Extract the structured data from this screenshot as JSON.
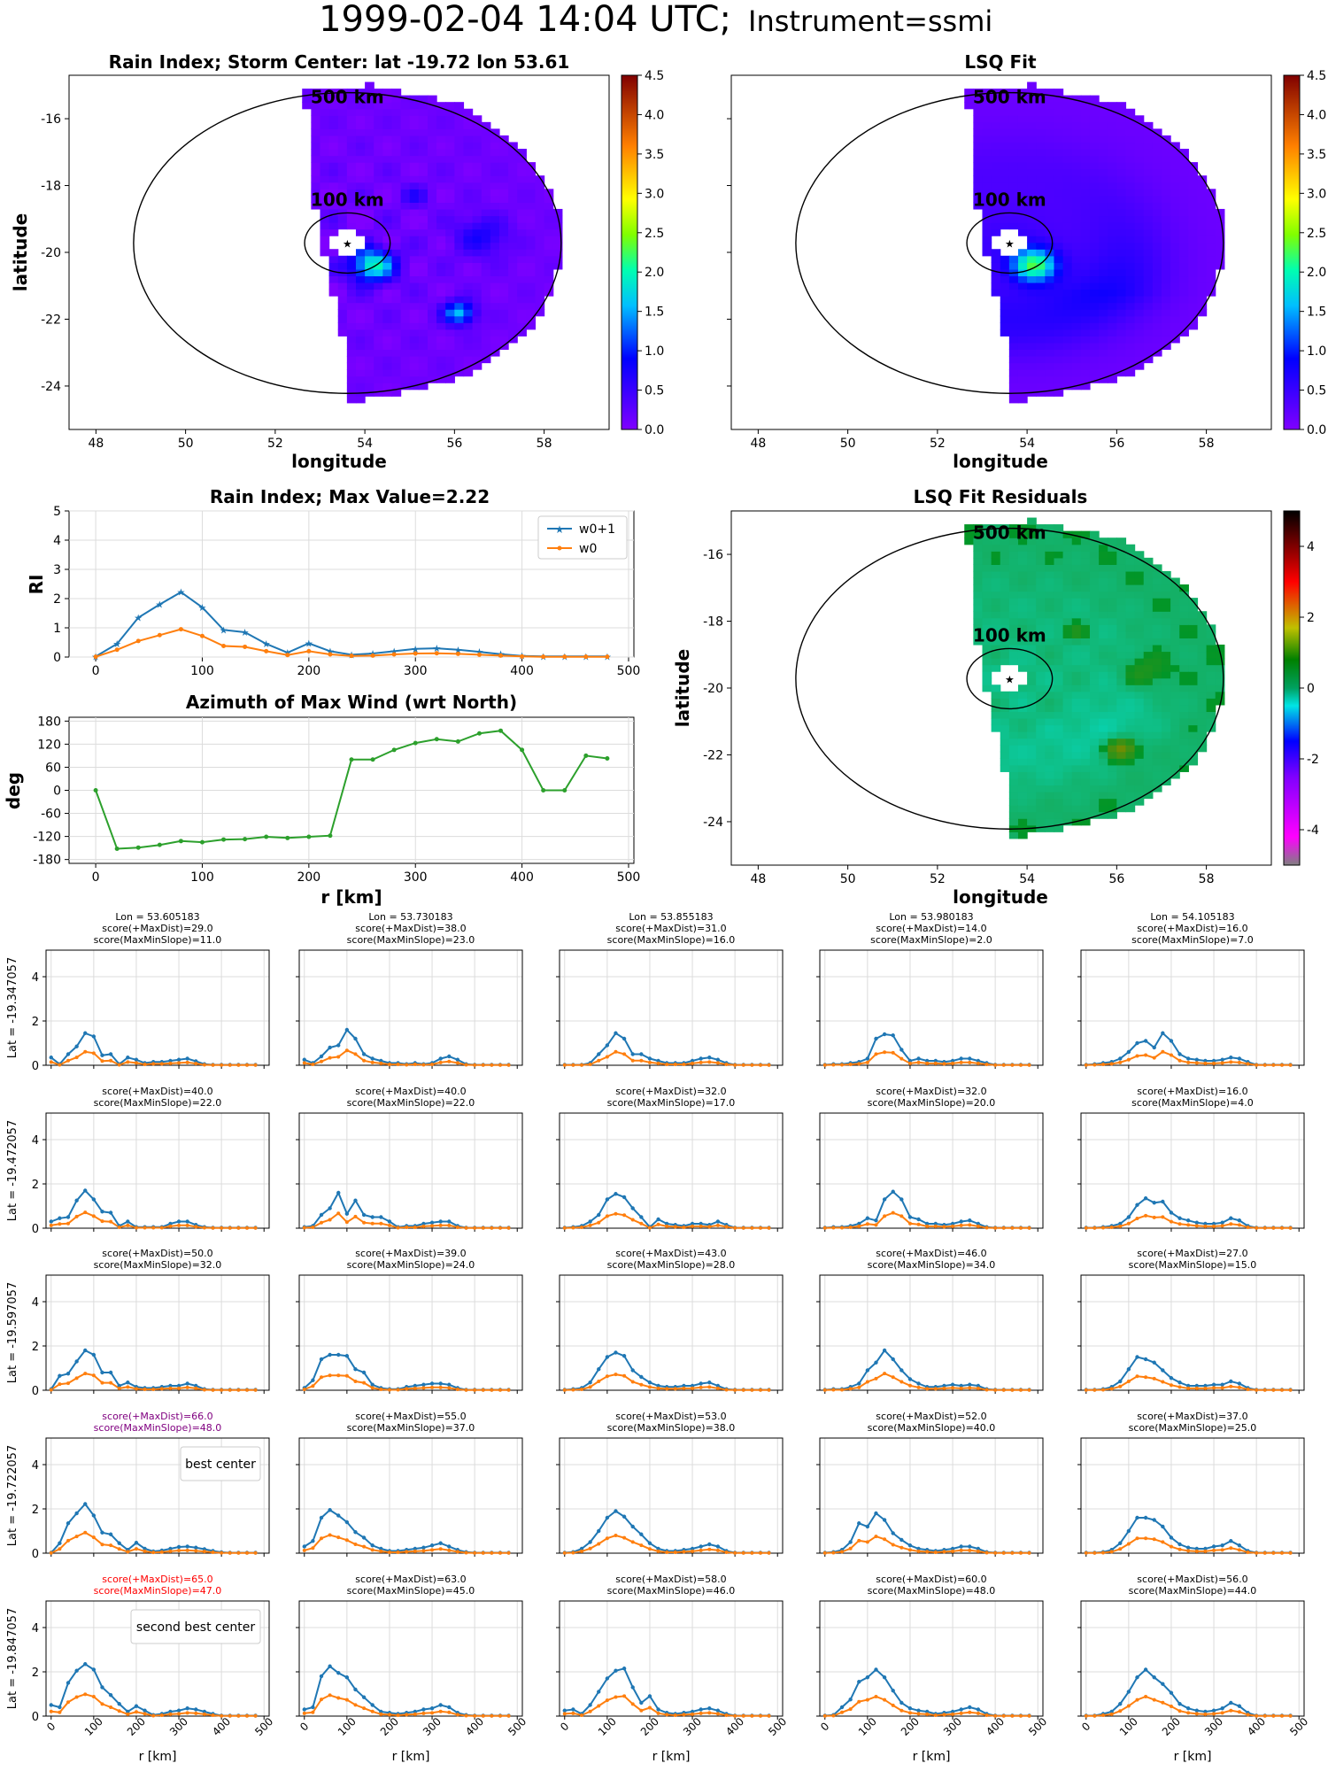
{
  "figure": {
    "title_main": "1999-02-04 14:04 UTC;",
    "title_instr": "Instrument=ssmi"
  },
  "colors": {
    "w0p1": "#1f77b4",
    "w0": "#ff7f0e",
    "azimuth": "#2ca02c",
    "best": "#800080",
    "second": "#ff0000"
  },
  "maps": {
    "rain": {
      "title": "Rain Index; Storm Center: lat -19.72 lon 53.61"
    },
    "fit": {
      "title": "LSQ Fit"
    },
    "resid": {
      "title": "LSQ Fit Residuals"
    },
    "xlabel": "longitude",
    "ylabel": "latitude",
    "label_500": "500 km",
    "label_100": "100 km",
    "center": {
      "lat": -19.72,
      "lon": 53.61
    },
    "xticks": [
      "48",
      "50",
      "52",
      "54",
      "56",
      "58"
    ],
    "yticks": [
      "-16",
      "-18",
      "-20",
      "-22",
      "-24"
    ],
    "cbar_ticks": [
      "0.0",
      "0.5",
      "1.0",
      "1.5",
      "2.0",
      "2.5",
      "3.0",
      "3.5",
      "4.0",
      "4.5"
    ],
    "cbar_resid_ticks": [
      "4",
      "2",
      "0",
      "-2",
      "-4"
    ]
  },
  "chart_data": [
    {
      "type": "line",
      "title": "Rain Index; Max Value=2.22",
      "ylabel": "RI",
      "ylim": [
        0,
        5
      ],
      "xlim": [
        -25,
        505
      ],
      "yticks": [
        "0",
        "1",
        "2",
        "3",
        "4",
        "5"
      ],
      "xticks": [
        "0",
        "100",
        "200",
        "300",
        "400",
        "500"
      ],
      "x": [
        0,
        20,
        40,
        60,
        80,
        100,
        120,
        140,
        160,
        180,
        200,
        220,
        240,
        260,
        280,
        300,
        320,
        340,
        360,
        380,
        400,
        420,
        440,
        460,
        480
      ],
      "series": [
        {
          "name": "w0+1",
          "values": [
            0.02,
            0.45,
            1.35,
            1.8,
            2.22,
            1.7,
            0.93,
            0.85,
            0.45,
            0.15,
            0.47,
            0.2,
            0.08,
            0.12,
            0.2,
            0.28,
            0.3,
            0.25,
            0.18,
            0.1,
            0.04,
            0.02,
            0.02,
            0.02,
            0.02
          ]
        },
        {
          "name": "w0",
          "values": [
            0.01,
            0.25,
            0.55,
            0.75,
            0.95,
            0.72,
            0.38,
            0.35,
            0.2,
            0.07,
            0.2,
            0.09,
            0.04,
            0.05,
            0.09,
            0.12,
            0.13,
            0.11,
            0.08,
            0.05,
            0.02,
            0.01,
            0.01,
            0.01,
            0.01
          ]
        }
      ]
    },
    {
      "type": "line",
      "title": "Azimuth of Max Wind (wrt North)",
      "ylabel": "deg",
      "xlabel": "r [km]",
      "ylim": [
        -190,
        190
      ],
      "xlim": [
        -25,
        505
      ],
      "yticks": [
        "180",
        "120",
        "60",
        "0",
        "-60",
        "-120",
        "-180"
      ],
      "xticks": [
        "0",
        "100",
        "200",
        "300",
        "400",
        "500"
      ],
      "x": [
        0,
        20,
        40,
        60,
        80,
        100,
        120,
        140,
        160,
        180,
        200,
        220,
        240,
        260,
        280,
        300,
        320,
        340,
        360,
        380,
        400,
        420,
        440,
        460,
        480
      ],
      "series": [
        {
          "values": [
            0,
            -152,
            -149,
            -142,
            -132,
            -135,
            -128,
            -127,
            -121,
            -124,
            -121,
            -118,
            80,
            80,
            105,
            123,
            133,
            127,
            148,
            155,
            105,
            0,
            0,
            90,
            83
          ]
        }
      ]
    }
  ],
  "grid": {
    "lons": [
      "Lon = 53.605183",
      "Lon = 53.730183",
      "Lon = 53.855183",
      "Lon = 53.980183",
      "Lon = 54.105183"
    ],
    "lats": [
      "Lat = -19.347057",
      "Lat = -19.472057",
      "Lat = -19.597057",
      "Lat = -19.722057",
      "Lat = -19.847057"
    ],
    "xlabel": "r [km]",
    "xticks": [
      "0",
      "100",
      "200",
      "300",
      "400",
      "500"
    ],
    "yticks": [
      "0",
      "2",
      "4"
    ],
    "best_label": "best center",
    "second_label": "second best center",
    "cells": [
      [
        {
          "s1": "score(+MaxDist)=29.0",
          "s2": "score(MaxMinSlope)=11.0",
          "a": [
            0.35,
            0.05,
            0.5,
            0.85,
            1.45,
            1.3,
            0.45,
            0.5,
            0.05,
            0.35,
            0.25,
            0.1,
            0.15,
            0.15,
            0.2,
            0.25,
            0.3,
            0.18,
            0.05,
            0.02,
            0.02,
            0.02,
            0.02,
            0.02,
            0.02
          ]
        },
        {
          "s1": "score(+MaxDist)=38.0",
          "s2": "score(MaxMinSlope)=23.0",
          "a": [
            0.25,
            0.1,
            0.4,
            0.8,
            0.9,
            1.6,
            1.2,
            0.5,
            0.3,
            0.2,
            0.1,
            0.1,
            0.05,
            0.1,
            0.05,
            0.1,
            0.3,
            0.4,
            0.25,
            0.05,
            0.02,
            0.02,
            0.02,
            0.02,
            0.02
          ]
        },
        {
          "s1": "score(+MaxDist)=31.0",
          "s2": "score(MaxMinSlope)=16.0",
          "a": [
            0.02,
            0.02,
            0.02,
            0.1,
            0.5,
            0.9,
            1.45,
            1.2,
            0.5,
            0.5,
            0.3,
            0.2,
            0.1,
            0.1,
            0.1,
            0.2,
            0.3,
            0.35,
            0.25,
            0.1,
            0.02,
            0.02,
            0.02,
            0.02,
            0.02
          ]
        },
        {
          "s1": "score(+MaxDist)=14.0",
          "s2": "score(MaxMinSlope)=2.0",
          "a": [
            0.02,
            0.05,
            0.05,
            0.1,
            0.15,
            0.3,
            1.2,
            1.4,
            1.35,
            0.7,
            0.2,
            0.3,
            0.2,
            0.2,
            0.15,
            0.2,
            0.3,
            0.3,
            0.2,
            0.1,
            0.02,
            0.02,
            0.02,
            0.02,
            0.02
          ]
        },
        {
          "s1": "score(+MaxDist)=16.0",
          "s2": "score(MaxMinSlope)=7.0",
          "a": [
            0.02,
            0.05,
            0.1,
            0.15,
            0.3,
            0.6,
            1.0,
            1.1,
            0.8,
            1.45,
            1.1,
            0.5,
            0.3,
            0.25,
            0.2,
            0.2,
            0.25,
            0.35,
            0.3,
            0.15,
            0.02,
            0.02,
            0.02,
            0.02,
            0.02
          ]
        }
      ],
      [
        {
          "s1": "score(+MaxDist)=40.0",
          "s2": "score(MaxMinSlope)=22.0",
          "a": [
            0.3,
            0.45,
            0.5,
            1.25,
            1.7,
            1.3,
            0.75,
            0.7,
            0.1,
            0.3,
            0.05,
            0.05,
            0.05,
            0.05,
            0.2,
            0.3,
            0.3,
            0.15,
            0.05,
            0.02,
            0.02,
            0.02,
            0.02,
            0.02,
            0.02
          ]
        },
        {
          "s1": "score(+MaxDist)=40.0",
          "s2": "score(MaxMinSlope)=22.0",
          "a": [
            0.05,
            0.1,
            0.6,
            0.9,
            1.6,
            0.65,
            1.25,
            0.6,
            0.5,
            0.5,
            0.3,
            0.05,
            0.1,
            0.1,
            0.2,
            0.25,
            0.3,
            0.3,
            0.1,
            0.02,
            0.02,
            0.02,
            0.02,
            0.02,
            0.02
          ]
        },
        {
          "s1": "score(+MaxDist)=32.0",
          "s2": "score(MaxMinSlope)=17.0",
          "a": [
            0.02,
            0.05,
            0.1,
            0.3,
            0.6,
            1.3,
            1.55,
            1.4,
            0.9,
            0.5,
            0.05,
            0.4,
            0.2,
            0.15,
            0.1,
            0.2,
            0.2,
            0.15,
            0.3,
            0.15,
            0.02,
            0.02,
            0.02,
            0.02,
            0.02
          ]
        },
        {
          "s1": "score(+MaxDist)=32.0",
          "s2": "score(MaxMinSlope)=20.0",
          "a": [
            0.02,
            0.05,
            0.05,
            0.1,
            0.2,
            0.45,
            0.35,
            1.3,
            1.65,
            1.3,
            0.5,
            0.4,
            0.2,
            0.2,
            0.15,
            0.2,
            0.3,
            0.35,
            0.2,
            0.05,
            0.02,
            0.02,
            0.02,
            0.02,
            0.02
          ]
        },
        {
          "s1": "score(+MaxDist)=16.0",
          "s2": "score(MaxMinSlope)=4.0",
          "a": [
            0.02,
            0.02,
            0.05,
            0.1,
            0.2,
            0.5,
            1.05,
            1.35,
            1.15,
            1.2,
            0.7,
            0.45,
            0.35,
            0.25,
            0.2,
            0.2,
            0.25,
            0.45,
            0.35,
            0.1,
            0.02,
            0.02,
            0.02,
            0.02,
            0.02
          ]
        }
      ],
      [
        {
          "s1": "score(+MaxDist)=50.0",
          "s2": "score(MaxMinSlope)=32.0",
          "a": [
            0.05,
            0.65,
            0.75,
            1.3,
            1.8,
            1.6,
            0.8,
            0.8,
            0.2,
            0.35,
            0.15,
            0.1,
            0.1,
            0.15,
            0.2,
            0.2,
            0.3,
            0.2,
            0.05,
            0.02,
            0.02,
            0.02,
            0.02,
            0.02,
            0.02
          ]
        },
        {
          "s1": "score(+MaxDist)=39.0",
          "s2": "score(MaxMinSlope)=24.0",
          "a": [
            0.1,
            0.45,
            1.4,
            1.6,
            1.6,
            1.55,
            0.95,
            0.8,
            0.25,
            0.1,
            0.05,
            0.05,
            0.15,
            0.2,
            0.25,
            0.3,
            0.3,
            0.25,
            0.1,
            0.02,
            0.02,
            0.02,
            0.02,
            0.02,
            0.02
          ]
        },
        {
          "s1": "score(+MaxDist)=43.0",
          "s2": "score(MaxMinSlope)=28.0",
          "a": [
            0.02,
            0.05,
            0.1,
            0.35,
            0.95,
            1.5,
            1.7,
            1.55,
            0.9,
            0.6,
            0.35,
            0.2,
            0.15,
            0.15,
            0.2,
            0.2,
            0.3,
            0.35,
            0.2,
            0.05,
            0.02,
            0.02,
            0.02,
            0.02,
            0.02
          ]
        },
        {
          "s1": "score(+MaxDist)=46.0",
          "s2": "score(MaxMinSlope)=34.0",
          "a": [
            0.02,
            0.05,
            0.05,
            0.15,
            0.3,
            0.9,
            1.25,
            1.8,
            1.4,
            0.9,
            0.5,
            0.3,
            0.15,
            0.15,
            0.2,
            0.25,
            0.2,
            0.25,
            0.2,
            0.05,
            0.02,
            0.02,
            0.02,
            0.02,
            0.02
          ]
        },
        {
          "s1": "score(+MaxDist)=27.0",
          "s2": "score(MaxMinSlope)=15.0",
          "a": [
            0.02,
            0.02,
            0.05,
            0.15,
            0.4,
            0.95,
            1.5,
            1.4,
            1.25,
            0.9,
            0.55,
            0.35,
            0.2,
            0.2,
            0.2,
            0.25,
            0.25,
            0.4,
            0.3,
            0.1,
            0.02,
            0.02,
            0.02,
            0.02,
            0.02
          ]
        }
      ],
      [
        {
          "s1": "score(+MaxDist)=66.0",
          "s2": "score(MaxMinSlope)=48.0",
          "a": [
            0.02,
            0.45,
            1.35,
            1.8,
            2.22,
            1.7,
            0.93,
            0.85,
            0.45,
            0.15,
            0.47,
            0.2,
            0.08,
            0.12,
            0.2,
            0.28,
            0.3,
            0.25,
            0.18,
            0.1,
            0.04,
            0.02,
            0.02,
            0.02,
            0.02
          ],
          "mark": "best"
        },
        {
          "s1": "score(+MaxDist)=55.0",
          "s2": "score(MaxMinSlope)=37.0",
          "a": [
            0.3,
            0.55,
            1.6,
            1.95,
            1.7,
            1.4,
            0.95,
            0.7,
            0.35,
            0.2,
            0.1,
            0.1,
            0.15,
            0.2,
            0.25,
            0.35,
            0.45,
            0.3,
            0.15,
            0.05,
            0.02,
            0.02,
            0.02,
            0.02,
            0.02
          ]
        },
        {
          "s1": "score(+MaxDist)=53.0",
          "s2": "score(MaxMinSlope)=38.0",
          "a": [
            0.02,
            0.05,
            0.2,
            0.5,
            1.0,
            1.6,
            1.9,
            1.65,
            1.2,
            0.85,
            0.45,
            0.2,
            0.1,
            0.1,
            0.15,
            0.2,
            0.3,
            0.4,
            0.3,
            0.1,
            0.02,
            0.02,
            0.02,
            0.02,
            0.02
          ]
        },
        {
          "s1": "score(+MaxDist)=52.0",
          "s2": "score(MaxMinSlope)=40.0",
          "a": [
            0.02,
            0.05,
            0.15,
            0.5,
            1.35,
            1.2,
            1.8,
            1.5,
            0.9,
            0.6,
            0.35,
            0.2,
            0.15,
            0.1,
            0.15,
            0.2,
            0.3,
            0.3,
            0.2,
            0.05,
            0.02,
            0.02,
            0.02,
            0.02,
            0.02
          ]
        },
        {
          "s1": "score(+MaxDist)=37.0",
          "s2": "score(MaxMinSlope)=25.0",
          "a": [
            0.02,
            0.02,
            0.05,
            0.15,
            0.45,
            1.0,
            1.6,
            1.6,
            1.5,
            1.2,
            0.7,
            0.4,
            0.25,
            0.2,
            0.2,
            0.3,
            0.35,
            0.55,
            0.35,
            0.1,
            0.02,
            0.02,
            0.02,
            0.02,
            0.02
          ]
        }
      ],
      [
        {
          "s1": "score(+MaxDist)=65.0",
          "s2": "score(MaxMinSlope)=47.0",
          "a": [
            0.5,
            0.4,
            1.5,
            2.05,
            2.35,
            2.1,
            1.3,
            0.95,
            0.55,
            0.2,
            0.45,
            0.25,
            0.05,
            0.1,
            0.2,
            0.25,
            0.35,
            0.3,
            0.2,
            0.1,
            0.02,
            0.02,
            0.02,
            0.02,
            0.02
          ],
          "mark": "second"
        },
        {
          "s1": "score(+MaxDist)=63.0",
          "s2": "score(MaxMinSlope)=45.0",
          "a": [
            0.3,
            0.4,
            1.8,
            2.25,
            1.95,
            1.75,
            1.2,
            0.85,
            0.5,
            0.2,
            0.15,
            0.1,
            0.15,
            0.2,
            0.3,
            0.35,
            0.5,
            0.4,
            0.15,
            0.05,
            0.02,
            0.02,
            0.02,
            0.02,
            0.02
          ]
        },
        {
          "s1": "score(+MaxDist)=58.0",
          "s2": "score(MaxMinSlope)=46.0",
          "a": [
            0.25,
            0.3,
            0.1,
            0.5,
            1.1,
            1.7,
            2.05,
            2.15,
            1.3,
            0.6,
            0.9,
            0.3,
            0.15,
            0.1,
            0.15,
            0.2,
            0.3,
            0.35,
            0.25,
            0.1,
            0.02,
            0.02,
            0.02,
            0.02,
            0.02
          ]
        },
        {
          "s1": "score(+MaxDist)=60.0",
          "s2": "score(MaxMinSlope)=48.0",
          "a": [
            0.02,
            0.05,
            0.4,
            0.75,
            1.55,
            1.75,
            2.1,
            1.75,
            1.15,
            0.6,
            0.35,
            0.25,
            0.2,
            0.1,
            0.15,
            0.2,
            0.3,
            0.4,
            0.3,
            0.1,
            0.02,
            0.02,
            0.02,
            0.02,
            0.02
          ]
        },
        {
          "s1": "score(+MaxDist)=56.0",
          "s2": "score(MaxMinSlope)=44.0",
          "a": [
            0.02,
            0.02,
            0.1,
            0.2,
            0.55,
            1.1,
            1.75,
            2.1,
            1.75,
            1.45,
            1.05,
            0.55,
            0.35,
            0.25,
            0.2,
            0.25,
            0.35,
            0.6,
            0.45,
            0.15,
            0.02,
            0.02,
            0.02,
            0.02,
            0.02
          ]
        }
      ]
    ]
  }
}
